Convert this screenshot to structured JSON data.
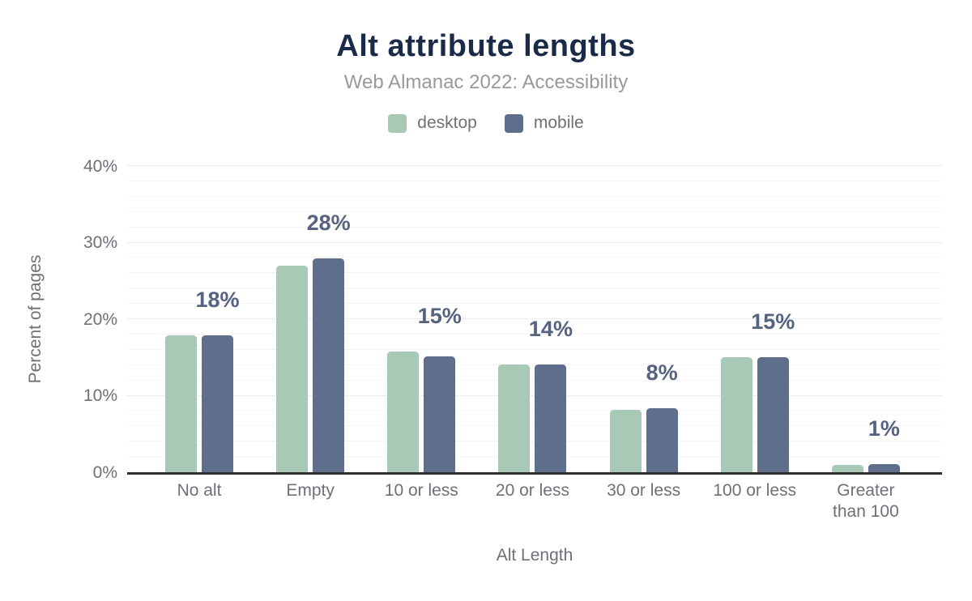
{
  "header": {
    "title": "Alt attribute lengths",
    "subtitle": "Web Almanac 2022: Accessibility"
  },
  "chart_data": {
    "type": "bar",
    "title": "Alt attribute lengths",
    "subtitle": "Web Almanac 2022: Accessibility",
    "xlabel": "Alt Length",
    "ylabel": "Percent of pages",
    "ylim": [
      0,
      40
    ],
    "ytick_step": 10,
    "minor_grid_step": 2,
    "yticks": [
      "0%",
      "10%",
      "20%",
      "30%",
      "40%"
    ],
    "grid": "horizontal",
    "legend_position": "top",
    "categories": [
      "No alt",
      "Empty",
      "10 or less",
      "20 or less",
      "30 or less",
      "100 or less",
      "Greater than 100"
    ],
    "series": [
      {
        "name": "desktop",
        "color": "#a7c9b6",
        "values": [
          17.9,
          27.0,
          15.8,
          14.1,
          8.1,
          15.0,
          1.0
        ]
      },
      {
        "name": "mobile",
        "color": "#5f6e8a",
        "values": [
          17.9,
          27.9,
          15.1,
          14.1,
          8.4,
          15.0,
          1.1
        ]
      }
    ],
    "data_labels": [
      "18%",
      "28%",
      "15%",
      "14%",
      "8%",
      "15%",
      "1%"
    ]
  },
  "colors": {
    "title": "#1a2b49",
    "subtitle": "#97999c",
    "axis_text": "#6e7076",
    "data_label": "#556280",
    "axis_line": "#2f2f2f",
    "gridline_minor": "#f4f4f5",
    "gridline_major": "#dcdde0",
    "desktop": "#a7c9b6",
    "mobile": "#5f6e8a",
    "background": "#ffffff"
  }
}
